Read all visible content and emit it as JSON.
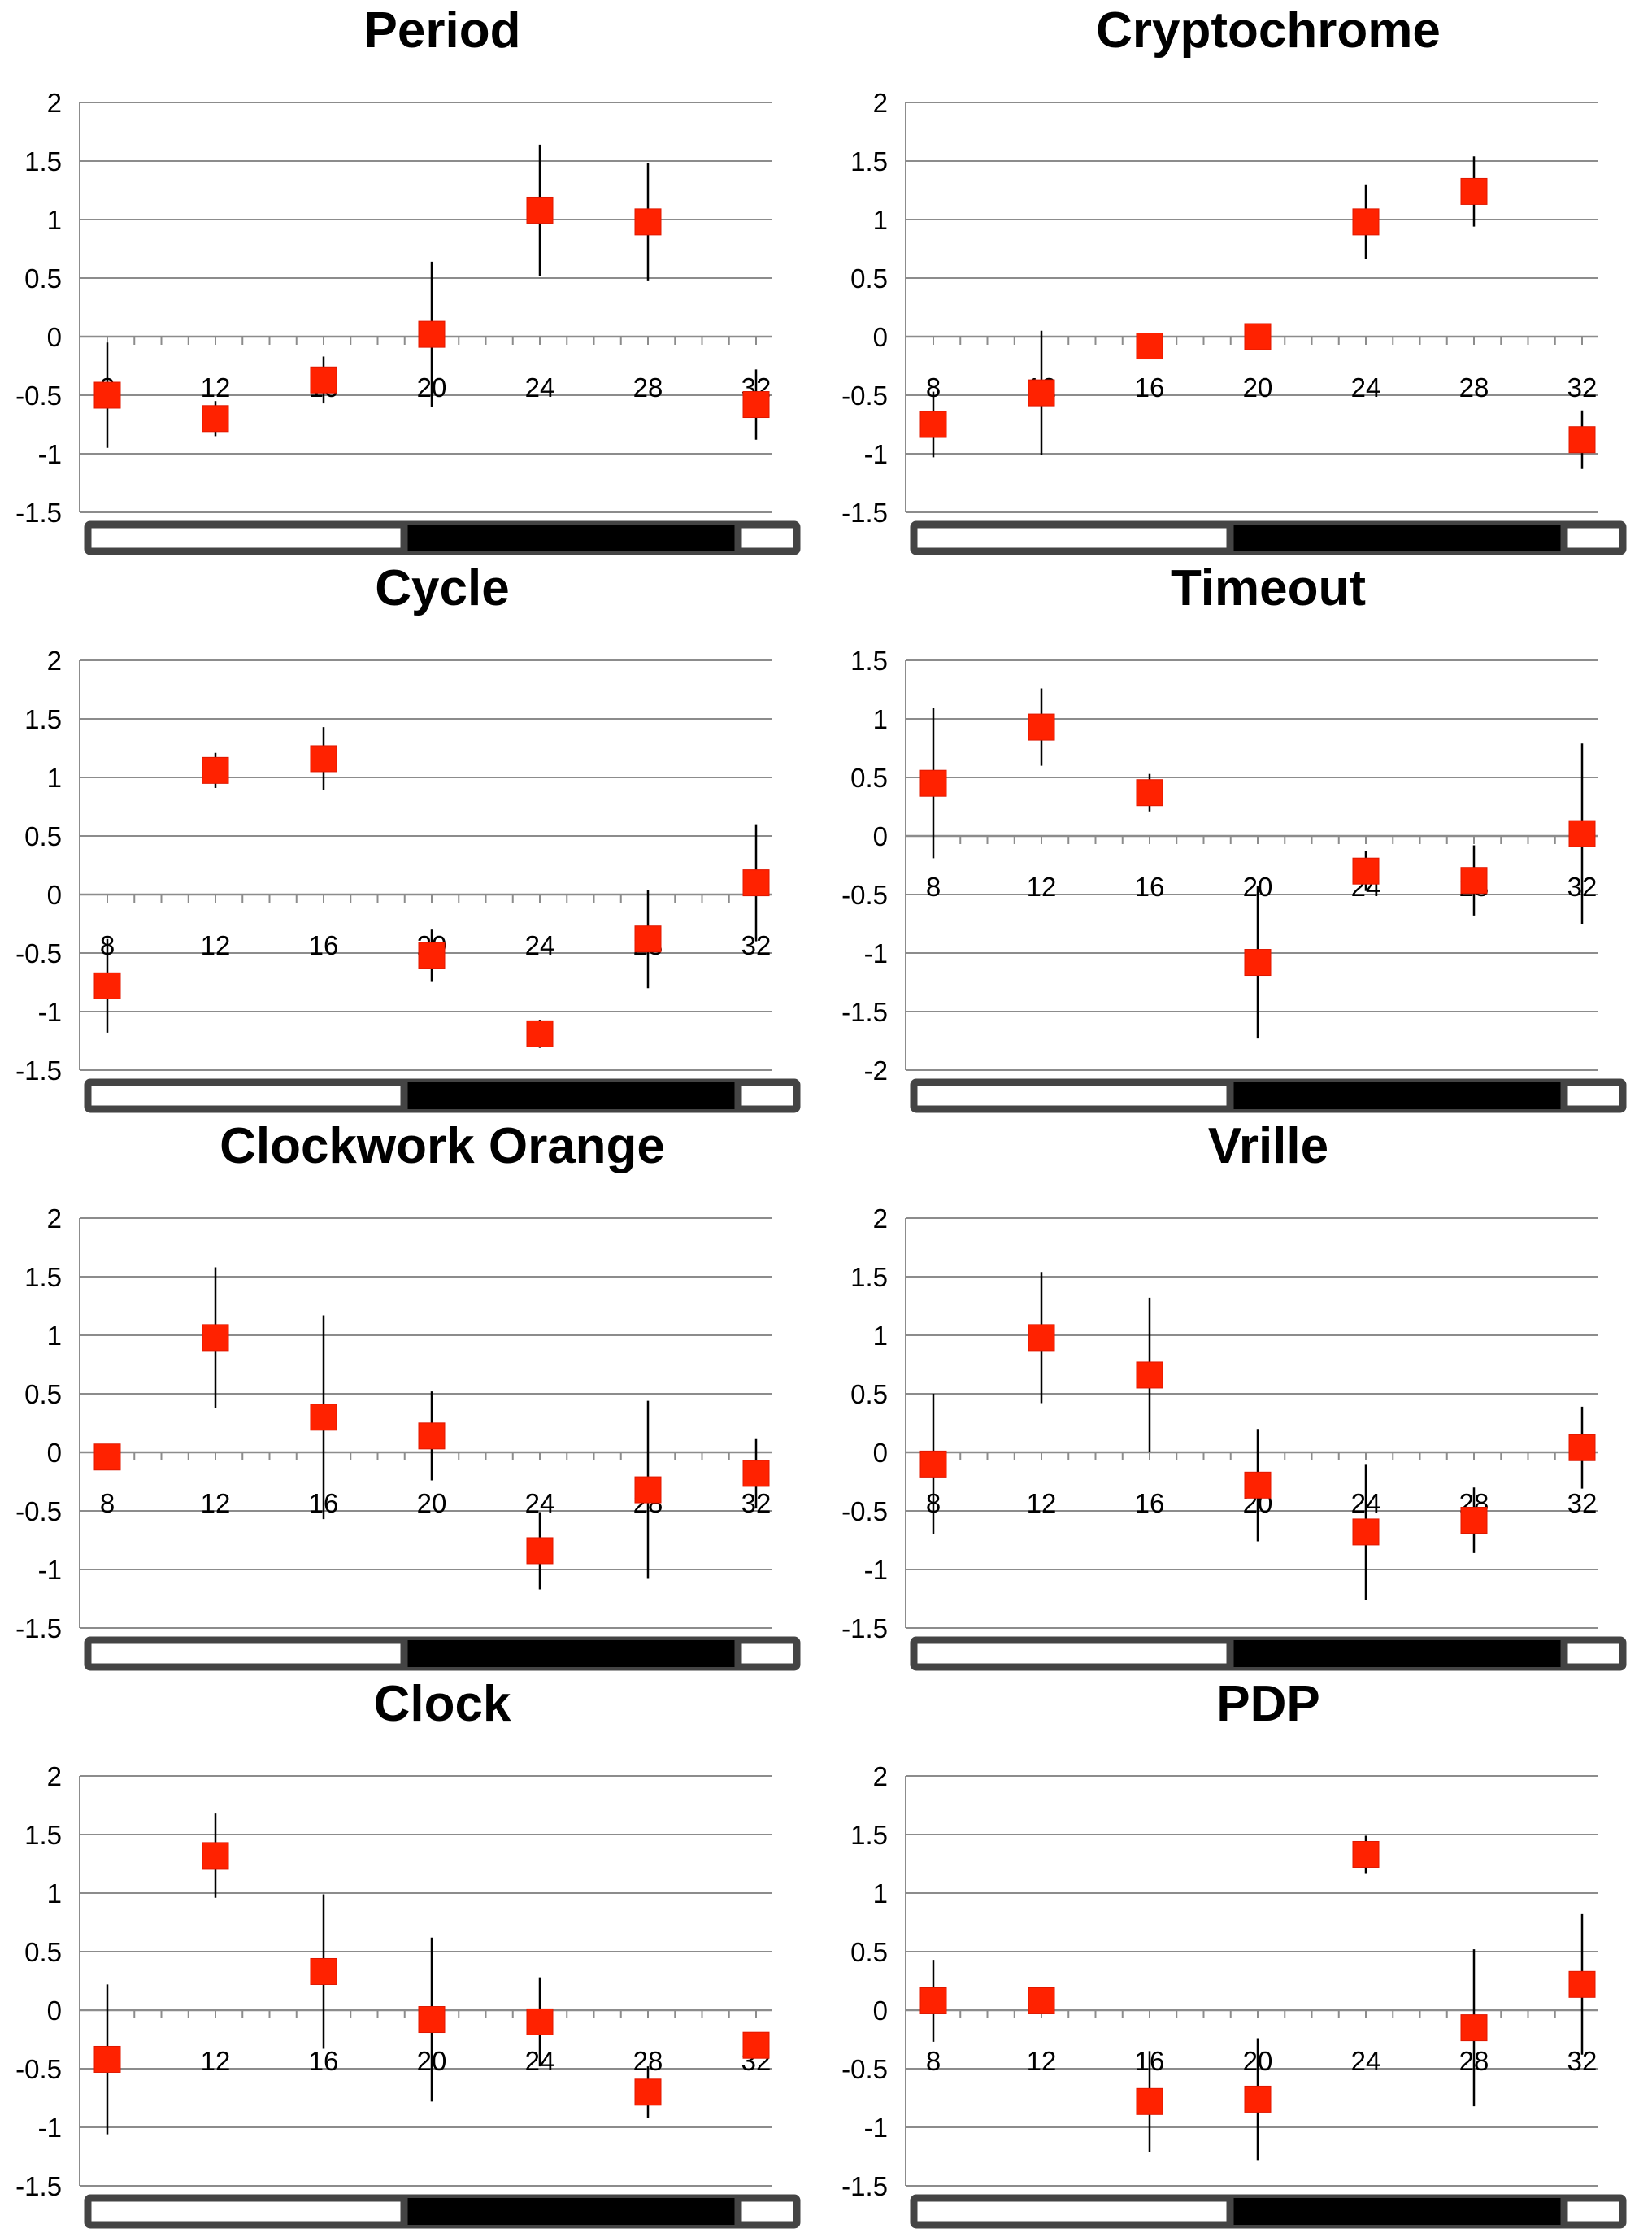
{
  "chart_data": [
    {
      "type": "scatter",
      "title": "Period",
      "x": [
        8,
        12,
        16,
        20,
        24,
        28,
        32
      ],
      "y": [
        -0.5,
        -0.7,
        -0.37,
        0.02,
        1.08,
        0.98,
        -0.58
      ],
      "error": [
        0.45,
        0.15,
        0.2,
        0.62,
        0.56,
        0.5,
        0.3
      ],
      "ylim": [
        -1.5,
        2
      ],
      "yticks": [
        "2",
        "1.5",
        "1",
        "0.5",
        "0",
        "-0.5",
        "-1",
        "-1.5"
      ],
      "xticks": [
        "8",
        "12",
        "16",
        "20",
        "24",
        "28",
        "32"
      ],
      "grid": true,
      "marker_color": "#ff2200"
    },
    {
      "type": "scatter",
      "title": "Cryptochrome",
      "x": [
        8,
        12,
        16,
        20,
        24,
        28,
        32
      ],
      "y": [
        -0.75,
        -0.48,
        -0.08,
        0.0,
        0.98,
        1.24,
        -0.88
      ],
      "error": [
        0.28,
        0.53,
        0.05,
        0.05,
        0.32,
        0.3,
        0.25
      ],
      "ylim": [
        -1.5,
        2
      ],
      "yticks": [
        "2",
        "1.5",
        "1",
        "0.5",
        "0",
        "-0.5",
        "-1",
        "-1.5"
      ],
      "xticks": [
        "8",
        "12",
        "16",
        "20",
        "24",
        "28",
        "32"
      ],
      "grid": true,
      "marker_color": "#ff2200"
    },
    {
      "type": "scatter",
      "title": "Cycle",
      "x": [
        8,
        12,
        16,
        20,
        24,
        28,
        32
      ],
      "y": [
        -0.78,
        1.06,
        1.16,
        -0.52,
        -1.19,
        -0.38,
        0.1
      ],
      "error": [
        0.4,
        0.15,
        0.27,
        0.22,
        0.12,
        0.42,
        0.5
      ],
      "ylim": [
        -1.5,
        2
      ],
      "yticks": [
        "2",
        "1.5",
        "1",
        "0.5",
        "0",
        "-0.5",
        "-1",
        "-1.5"
      ],
      "xticks": [
        "8",
        "12",
        "16",
        "20",
        "24",
        "28",
        "32"
      ],
      "grid": true,
      "marker_color": "#ff2200"
    },
    {
      "type": "scatter",
      "title": "Timeout",
      "x": [
        8,
        12,
        16,
        20,
        24,
        28,
        32
      ],
      "y": [
        0.45,
        0.93,
        0.37,
        -1.08,
        -0.3,
        -0.38,
        0.02
      ],
      "error": [
        0.64,
        0.33,
        0.16,
        0.65,
        0.17,
        0.3,
        0.77
      ],
      "ylim": [
        -2,
        1.5
      ],
      "yticks": [
        "1.5",
        "1",
        "0.5",
        "0",
        "-0.5",
        "-1",
        "-1.5",
        "-2"
      ],
      "xticks": [
        "8",
        "12",
        "16",
        "20",
        "24",
        "28",
        "32"
      ],
      "grid": true,
      "marker_color": "#ff2200"
    },
    {
      "type": "scatter",
      "title": "Clockwork Orange",
      "x": [
        8,
        12,
        16,
        20,
        24,
        28,
        32
      ],
      "y": [
        -0.04,
        0.98,
        0.3,
        0.14,
        -0.84,
        -0.32,
        -0.18
      ],
      "error": [
        0.05,
        0.6,
        0.87,
        0.38,
        0.33,
        0.76,
        0.3
      ],
      "ylim": [
        -1.5,
        2
      ],
      "yticks": [
        "2",
        "1.5",
        "1",
        "0.5",
        "0",
        "-0.5",
        "-1",
        "-1.5"
      ],
      "xticks": [
        "8",
        "12",
        "16",
        "20",
        "24",
        "28",
        "32"
      ],
      "grid": true,
      "marker_color": "#ff2200"
    },
    {
      "type": "scatter",
      "title": "Vrille",
      "x": [
        8,
        12,
        16,
        20,
        24,
        28,
        32
      ],
      "y": [
        -0.1,
        0.98,
        0.66,
        -0.28,
        -0.68,
        -0.58,
        0.04
      ],
      "error": [
        0.6,
        0.56,
        0.66,
        0.48,
        0.58,
        0.28,
        0.35
      ],
      "ylim": [
        -1.5,
        2
      ],
      "yticks": [
        "2",
        "1.5",
        "1",
        "0.5",
        "0",
        "-0.5",
        "-1",
        "-1.5"
      ],
      "xticks": [
        "8",
        "12",
        "16",
        "20",
        "24",
        "28",
        "32"
      ],
      "grid": true,
      "marker_color": "#ff2200"
    },
    {
      "type": "scatter",
      "title": "Clock",
      "x": [
        8,
        12,
        16,
        20,
        24,
        28,
        32
      ],
      "y": [
        -0.42,
        1.32,
        0.33,
        -0.08,
        -0.1,
        -0.7,
        -0.3
      ],
      "error": [
        0.64,
        0.36,
        0.66,
        0.7,
        0.38,
        0.22,
        0.05
      ],
      "ylim": [
        -1.5,
        2
      ],
      "yticks": [
        "2",
        "1.5",
        "1",
        "0.5",
        "0",
        "-0.5",
        "-1",
        "-1.5"
      ],
      "xticks": [
        "8",
        "12",
        "16",
        "20",
        "24",
        "28",
        "32"
      ],
      "grid": true,
      "marker_color": "#ff2200"
    },
    {
      "type": "scatter",
      "title": "PDP",
      "x": [
        8,
        12,
        16,
        20,
        24,
        28,
        32
      ],
      "y": [
        0.08,
        0.08,
        -0.78,
        -0.76,
        1.33,
        -0.15,
        0.22
      ],
      "error": [
        0.35,
        0.05,
        0.43,
        0.52,
        0.16,
        0.67,
        0.6
      ],
      "ylim": [
        -1.5,
        2
      ],
      "yticks": [
        "2",
        "1.5",
        "1",
        "0.5",
        "0",
        "-0.5",
        "-1",
        "-1.5"
      ],
      "xticks": [
        "8",
        "12",
        "16",
        "20",
        "24",
        "28",
        "32"
      ],
      "grid": true,
      "marker_color": "#ff2200"
    }
  ]
}
